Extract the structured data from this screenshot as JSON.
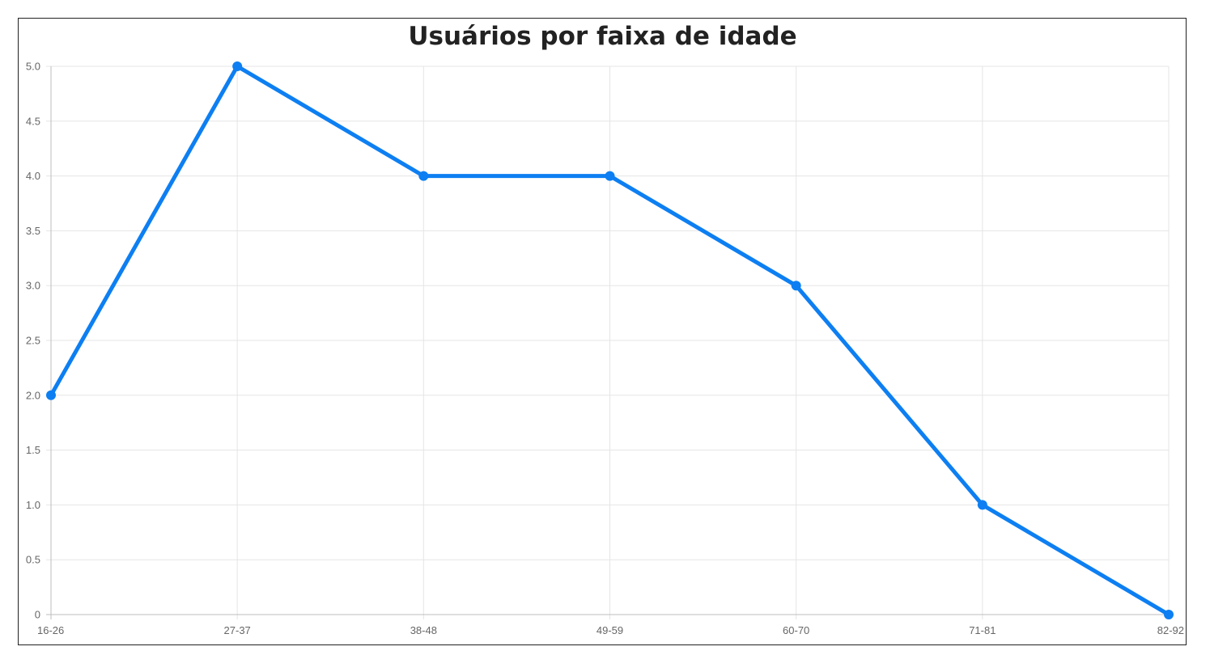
{
  "chart_data": {
    "type": "line",
    "title": "Usuários por faixa de idade",
    "xlabel": "",
    "ylabel": "",
    "categories": [
      "16-26",
      "27-37",
      "38-48",
      "49-59",
      "60-70",
      "71-81",
      "82-92"
    ],
    "series": [
      {
        "values": [
          2,
          5,
          4,
          4,
          3,
          1,
          0
        ]
      }
    ],
    "ylim": [
      0,
      5
    ],
    "y_ticks": [
      "0",
      "0.5",
      "1.0",
      "1.5",
      "2.0",
      "2.5",
      "3.0",
      "3.5",
      "4.0",
      "4.5",
      "5.0"
    ],
    "y_tick_values": [
      0,
      0.5,
      1,
      1.5,
      2,
      2.5,
      3,
      3.5,
      4,
      4.5,
      5
    ],
    "grid": true,
    "legend": "none",
    "colors": {
      "line": "#0d7ff2",
      "grid": "#e5e5e5",
      "axis": "#bdbdbd",
      "tick_text": "#666666"
    }
  }
}
